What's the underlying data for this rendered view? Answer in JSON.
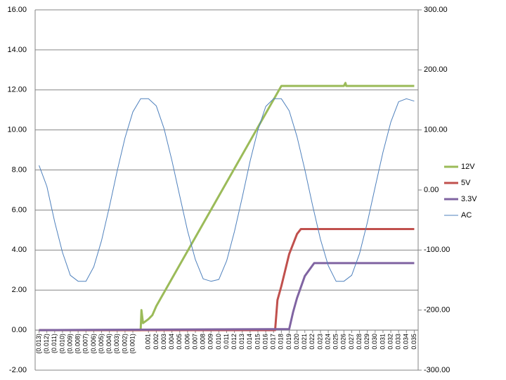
{
  "chart_data": {
    "type": "line",
    "ylim": [
      -2,
      16
    ],
    "yticks": [
      {
        "value": -2,
        "label": "-2.00"
      },
      {
        "value": 0,
        "label": "0.00"
      },
      {
        "value": 2,
        "label": "2.00"
      },
      {
        "value": 4,
        "label": "4.00"
      },
      {
        "value": 6,
        "label": "6.00"
      },
      {
        "value": 8,
        "label": "8.00"
      },
      {
        "value": 10,
        "label": "10.00"
      },
      {
        "value": 12,
        "label": "12.00"
      },
      {
        "value": 14,
        "label": "14.00"
      },
      {
        "value": 16,
        "label": "16.00"
      }
    ],
    "y2lim": [
      -300,
      300
    ],
    "y2ticks": [
      {
        "value": -300,
        "label": "-300.00"
      },
      {
        "value": -200,
        "label": "-200.00"
      },
      {
        "value": -100,
        "label": "-100.00"
      },
      {
        "value": 0,
        "label": "0.00"
      },
      {
        "value": 100,
        "label": "100.00"
      },
      {
        "value": 200,
        "label": "200.00"
      },
      {
        "value": 300,
        "label": "300.00"
      }
    ],
    "xlim": [
      -0.0135,
      0.0355
    ],
    "xticks": [
      {
        "value": -0.013,
        "label": "(0.013)"
      },
      {
        "value": -0.012,
        "label": "(0.012)"
      },
      {
        "value": -0.011,
        "label": "(0.011)"
      },
      {
        "value": -0.01,
        "label": "(0.010)"
      },
      {
        "value": -0.009,
        "label": "(0.009)"
      },
      {
        "value": -0.008,
        "label": "(0.008)"
      },
      {
        "value": -0.007,
        "label": "(0.007)"
      },
      {
        "value": -0.006,
        "label": "(0.006)"
      },
      {
        "value": -0.005,
        "label": "(0.005)"
      },
      {
        "value": -0.004,
        "label": "(0.004)"
      },
      {
        "value": -0.003,
        "label": "(0.003)"
      },
      {
        "value": -0.002,
        "label": "(0.002)"
      },
      {
        "value": -0.001,
        "label": "(0.001)"
      },
      {
        "value": 0.001,
        "label": "0.001"
      },
      {
        "value": 0.002,
        "label": "0.002"
      },
      {
        "value": 0.003,
        "label": "0.003"
      },
      {
        "value": 0.004,
        "label": "0.004"
      },
      {
        "value": 0.005,
        "label": "0.005"
      },
      {
        "value": 0.006,
        "label": "0.006"
      },
      {
        "value": 0.007,
        "label": "0.007"
      },
      {
        "value": 0.008,
        "label": "0.008"
      },
      {
        "value": 0.009,
        "label": "0.009"
      },
      {
        "value": 0.01,
        "label": "0.010"
      },
      {
        "value": 0.011,
        "label": "0.011"
      },
      {
        "value": 0.012,
        "label": "0.012"
      },
      {
        "value": 0.013,
        "label": "0.013"
      },
      {
        "value": 0.014,
        "label": "0.014"
      },
      {
        "value": 0.015,
        "label": "0.015"
      },
      {
        "value": 0.016,
        "label": "0.016"
      },
      {
        "value": 0.017,
        "label": "0.017"
      },
      {
        "value": 0.018,
        "label": "0.018"
      },
      {
        "value": 0.019,
        "label": "0.019"
      },
      {
        "value": 0.02,
        "label": "0.020"
      },
      {
        "value": 0.021,
        "label": "0.021"
      },
      {
        "value": 0.022,
        "label": "0.022"
      },
      {
        "value": 0.023,
        "label": "0.023"
      },
      {
        "value": 0.024,
        "label": "0.024"
      },
      {
        "value": 0.025,
        "label": "0.025"
      },
      {
        "value": 0.026,
        "label": "0.026"
      },
      {
        "value": 0.027,
        "label": "0.027"
      },
      {
        "value": 0.028,
        "label": "0.028"
      },
      {
        "value": 0.029,
        "label": "0.029"
      },
      {
        "value": 0.03,
        "label": "0.030"
      },
      {
        "value": 0.031,
        "label": "0.031"
      },
      {
        "value": 0.032,
        "label": "0.032"
      },
      {
        "value": 0.033,
        "label": "0.033"
      },
      {
        "value": 0.034,
        "label": "0.034"
      },
      {
        "value": 0.035,
        "label": "0.035"
      }
    ],
    "grid": true,
    "legend": "right",
    "series": [
      {
        "name": "12V",
        "color": "#9bbb59",
        "width": 3,
        "x": [
          -0.013,
          0.0,
          0.0001,
          0.0003,
          0.001,
          0.0015,
          0.002,
          0.018,
          0.026,
          0.0262,
          0.0263,
          0.035
        ],
        "values": [
          0,
          0,
          1.0,
          0.35,
          0.55,
          0.75,
          1.2,
          12.2,
          12.2,
          12.35,
          12.2,
          12.2
        ]
      },
      {
        "name": "5V",
        "color": "#c0504d",
        "width": 3,
        "x": [
          -0.013,
          0.0172,
          0.0175,
          0.018,
          0.019,
          0.02,
          0.0205,
          0.035
        ],
        "values": [
          0,
          0,
          1.5,
          2.2,
          3.8,
          4.8,
          5.05,
          5.05
        ]
      },
      {
        "name": "3.3V",
        "color": "#8064a2",
        "width": 3,
        "x": [
          -0.013,
          0.0172,
          0.019,
          0.0195,
          0.02,
          0.021,
          0.0222,
          0.035
        ],
        "values": [
          0,
          0.05,
          0.05,
          0.9,
          1.6,
          2.7,
          3.35,
          3.35
        ]
      },
      {
        "name": "AC",
        "color": "#4f81bd",
        "width": 1,
        "axis": "y2",
        "x": [
          -0.013,
          -0.012,
          -0.011,
          -0.01,
          -0.009,
          -0.008,
          -0.007,
          -0.006,
          -0.005,
          -0.004,
          -0.003,
          -0.002,
          -0.001,
          0.0,
          0.001,
          0.002,
          0.003,
          0.004,
          0.005,
          0.006,
          0.007,
          0.008,
          0.009,
          0.01,
          0.011,
          0.012,
          0.013,
          0.014,
          0.015,
          0.016,
          0.017,
          0.018,
          0.019,
          0.02,
          0.021,
          0.022,
          0.023,
          0.024,
          0.025,
          0.026,
          0.027,
          0.028,
          0.029,
          0.03,
          0.031,
          0.032,
          0.033,
          0.034,
          0.035
        ],
        "values": [
          41,
          6,
          -53,
          -104,
          -142,
          -152,
          -152,
          -128,
          -84,
          -28,
          32,
          87,
          130,
          152,
          152,
          140,
          102,
          49,
          -10,
          -68,
          -116,
          -148,
          -152,
          -149,
          -118,
          -69,
          -12,
          48,
          100,
          139,
          152,
          152,
          132,
          89,
          34,
          -26,
          -82,
          -126,
          -152,
          -152,
          -142,
          -106,
          -54,
          5,
          63,
          113,
          147,
          152,
          148
        ]
      }
    ]
  }
}
